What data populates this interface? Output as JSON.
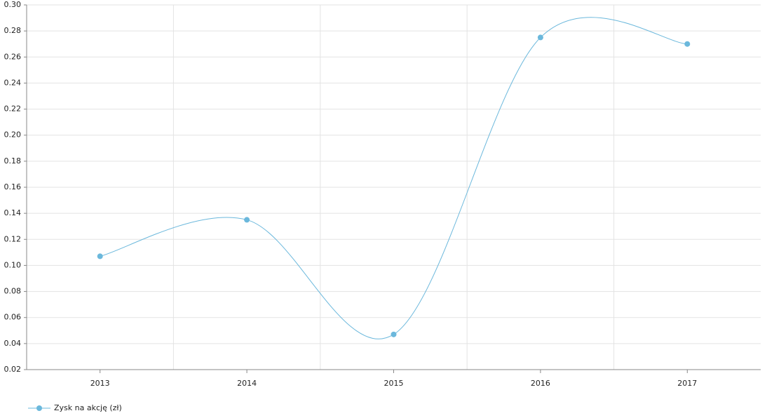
{
  "chart_data": {
    "type": "line",
    "categories": [
      "2013",
      "2014",
      "2015",
      "2016",
      "2017"
    ],
    "series": [
      {
        "name": "Zysk na akcję (zł)",
        "color": "#6bb8dc",
        "values": [
          0.107,
          0.135,
          0.047,
          0.275,
          0.27
        ]
      }
    ],
    "ylim": [
      0.02,
      0.3
    ],
    "yticks": [
      0.02,
      0.04,
      0.06,
      0.08,
      {
        "value": 0.1,
        "label": "0.10"
      },
      0.12,
      0.14,
      0.16,
      0.18,
      {
        "value": 0.2,
        "label": "0.20"
      },
      0.22,
      0.24,
      0.26,
      0.28,
      {
        "value": 0.3,
        "label": "0.30"
      }
    ],
    "grid": true,
    "smooth": true,
    "legend": "bottom-left"
  }
}
